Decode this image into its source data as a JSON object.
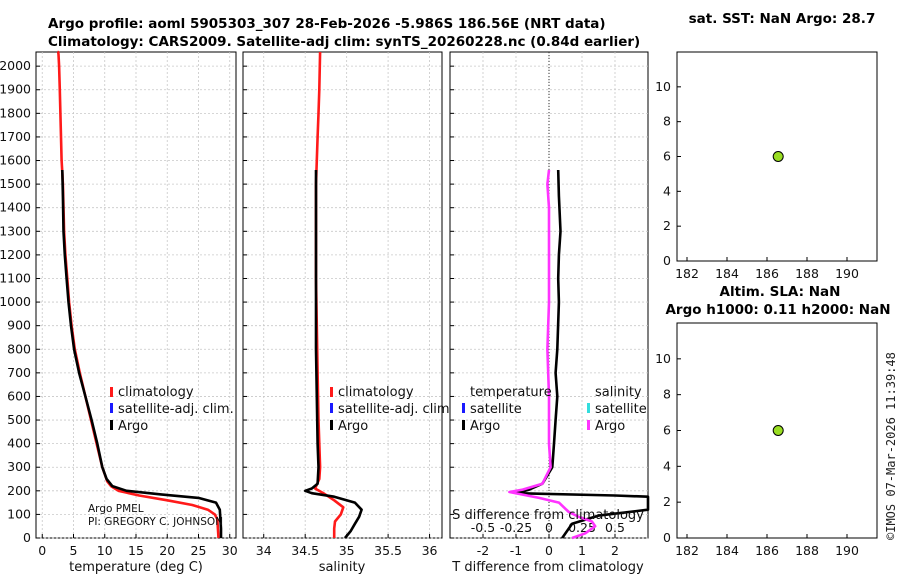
{
  "title_line1": "Argo profile: aoml 5905303_307 28-Feb-2026 -5.986S 186.56E (NRT data)",
  "title_line2": "Climatology: CARS2009. Satellite-adj clim: synTS_20260228.nc (0.84d earlier)",
  "sst_title": "sat. SST: NaN Argo: 28.7",
  "sla_title1": "Altim. SLA: NaN",
  "sla_title2": "Argo h1000: 0.11 h2000: NaN",
  "side_stamp": "©IMOS 07-Mar-2026 11:39:48",
  "pi_line1": "Argo PMEL",
  "pi_line2": "PI: GREGORY C. JOHNSON",
  "legend": {
    "climatology": "climatology",
    "satellite": "satellite-adj. clim.",
    "argo": "Argo",
    "temperature": "temperature",
    "salinity": "salinity",
    "satellite_short": "satellite"
  },
  "colors": {
    "climatology": "#ff1a1a",
    "satellite": "#1a1aff",
    "argo": "#000000",
    "satellite_sal": "#33dddd",
    "argo_sal": "#ff33ff",
    "marker": "#99dd22"
  },
  "chart_data": [
    {
      "type": "line",
      "name": "temperature profile",
      "xlabel": "temperature (deg C)",
      "ylabel": "",
      "xlim": [
        -1,
        31
      ],
      "ylim": [
        2060,
        0
      ],
      "xticks": [
        0,
        5,
        10,
        15,
        20,
        25,
        30
      ],
      "yticks": [
        0,
        100,
        200,
        300,
        400,
        500,
        600,
        700,
        800,
        900,
        1000,
        1100,
        1200,
        1300,
        1400,
        1500,
        1600,
        1700,
        1800,
        1900,
        2000
      ],
      "series": [
        {
          "name": "climatology",
          "color": "#ff1a1a",
          "x": [
            28.2,
            28.1,
            28.0,
            27.6,
            26.5,
            24.0,
            20.0,
            15.5,
            12.2,
            11.0,
            10.4,
            9.6,
            8.7,
            7.8,
            6.9,
            6.0,
            5.2,
            4.7,
            4.3,
            4.0,
            3.7,
            3.5,
            3.4,
            3.3,
            3.2,
            3.1,
            3.0,
            2.9,
            2.8,
            2.7,
            2.6,
            2.55,
            2.5,
            2.45
          ],
          "y": [
            0,
            40,
            80,
            100,
            120,
            140,
            160,
            180,
            200,
            220,
            240,
            300,
            400,
            500,
            600,
            700,
            800,
            900,
            1000,
            1100,
            1200,
            1300,
            1400,
            1500,
            1550,
            1600,
            1700,
            1800,
            1900,
            2000,
            2050,
            2060,
            2060,
            2060
          ]
        },
        {
          "name": "Argo",
          "color": "#000000",
          "x": [
            28.6,
            28.6,
            28.5,
            28.4,
            27.8,
            25.0,
            19.0,
            13.5,
            11.2,
            10.3,
            9.6,
            8.8,
            7.9,
            6.9,
            5.9,
            5.1,
            4.6,
            4.2,
            3.9,
            3.6,
            3.4,
            3.3,
            3.2
          ],
          "y": [
            0,
            40,
            80,
            120,
            150,
            170,
            185,
            200,
            220,
            250,
            300,
            400,
            500,
            600,
            700,
            800,
            900,
            1000,
            1100,
            1200,
            1300,
            1450,
            1560
          ]
        }
      ]
    },
    {
      "type": "line",
      "name": "salinity profile",
      "xlabel": "salinity",
      "xlim": [
        33.75,
        36.15
      ],
      "ylim": [
        2060,
        0
      ],
      "xticks": [
        34,
        34.5,
        35,
        35.5,
        36
      ],
      "series": [
        {
          "name": "climatology",
          "color": "#ff1a1a",
          "x": [
            34.85,
            34.85,
            34.86,
            34.93,
            34.96,
            34.85,
            34.72,
            34.62,
            34.67,
            34.68,
            34.67,
            34.66,
            34.65,
            34.64,
            34.63,
            34.63,
            34.63,
            34.63,
            34.64,
            34.65,
            34.66,
            34.67,
            34.68
          ],
          "y": [
            0,
            40,
            70,
            100,
            130,
            160,
            190,
            210,
            250,
            300,
            400,
            500,
            700,
            900,
            1100,
            1300,
            1400,
            1500,
            1600,
            1700,
            1800,
            1900,
            2060
          ]
        },
        {
          "name": "Argo",
          "color": "#000000",
          "x": [
            34.98,
            35.05,
            35.1,
            35.15,
            35.18,
            35.1,
            34.85,
            34.58,
            34.5,
            34.58,
            34.65,
            34.66,
            34.65,
            34.64,
            34.63,
            34.63,
            34.63,
            34.63,
            34.63
          ],
          "y": [
            0,
            30,
            60,
            90,
            120,
            150,
            175,
            190,
            200,
            210,
            230,
            300,
            400,
            600,
            800,
            1000,
            1200,
            1400,
            1560
          ]
        }
      ]
    },
    {
      "type": "line",
      "name": "difference from climatology",
      "xlabel": "T difference from climatology",
      "xlabel_top": "S difference from climatology",
      "xlim": [
        -3,
        3
      ],
      "ylim": [
        2060,
        0
      ],
      "xticks": [
        -2,
        -1,
        0,
        1,
        2
      ],
      "xticks_s": [
        "-0.5",
        "-0.25",
        "0",
        "0.25",
        "0.5"
      ],
      "series": [
        {
          "name": "T difference (Argo)",
          "color": "#000000",
          "x": [
            0.4,
            0.5,
            0.7,
            1.5,
            3.0,
            3.0,
            2.0,
            -1.0,
            -0.6,
            -0.2,
            0.1,
            0.15,
            0.2,
            0.25,
            0.2,
            0.25,
            0.3,
            0.28,
            0.3,
            0.35,
            0.3,
            0.28
          ],
          "y": [
            0,
            20,
            60,
            95,
            120,
            175,
            180,
            190,
            205,
            230,
            300,
            400,
            500,
            600,
            700,
            800,
            1000,
            1100,
            1200,
            1300,
            1450,
            1560
          ]
        },
        {
          "name": "S difference (Argo)",
          "color": "#ff33ff",
          "x": [
            0.7,
            1.1,
            1.4,
            1.3,
            0.9,
            0.6,
            0.3,
            -0.3,
            -1.2,
            -0.8,
            -0.2,
            0.05,
            0.0,
            0.0,
            -0.05,
            0.0,
            0.0,
            0.0,
            0.0,
            0.0,
            -0.05,
            0.0
          ],
          "y": [
            0,
            20,
            50,
            70,
            90,
            110,
            150,
            170,
            195,
            205,
            230,
            300,
            400,
            600,
            800,
            1000,
            1100,
            1200,
            1300,
            1400,
            1500,
            1560
          ]
        }
      ]
    },
    {
      "type": "scatter",
      "name": "SST",
      "title": "sat. SST: NaN Argo: 28.7",
      "xlim": [
        181.5,
        191.5
      ],
      "ylim": [
        0,
        12
      ],
      "xticks": [
        182,
        184,
        186,
        188,
        190
      ],
      "yticks": [
        0,
        2,
        4,
        6,
        8,
        10
      ],
      "points": [
        {
          "x": 186.56,
          "y": 6
        }
      ]
    },
    {
      "type": "scatter",
      "name": "SLA",
      "title": "Altim. SLA: NaN / Argo h1000: 0.11 h2000: NaN",
      "xlim": [
        181.5,
        191.5
      ],
      "ylim": [
        0,
        12
      ],
      "xticks": [
        182,
        184,
        186,
        188,
        190
      ],
      "yticks": [
        0,
        2,
        4,
        6,
        8,
        10
      ],
      "points": [
        {
          "x": 186.56,
          "y": 6
        }
      ]
    }
  ]
}
